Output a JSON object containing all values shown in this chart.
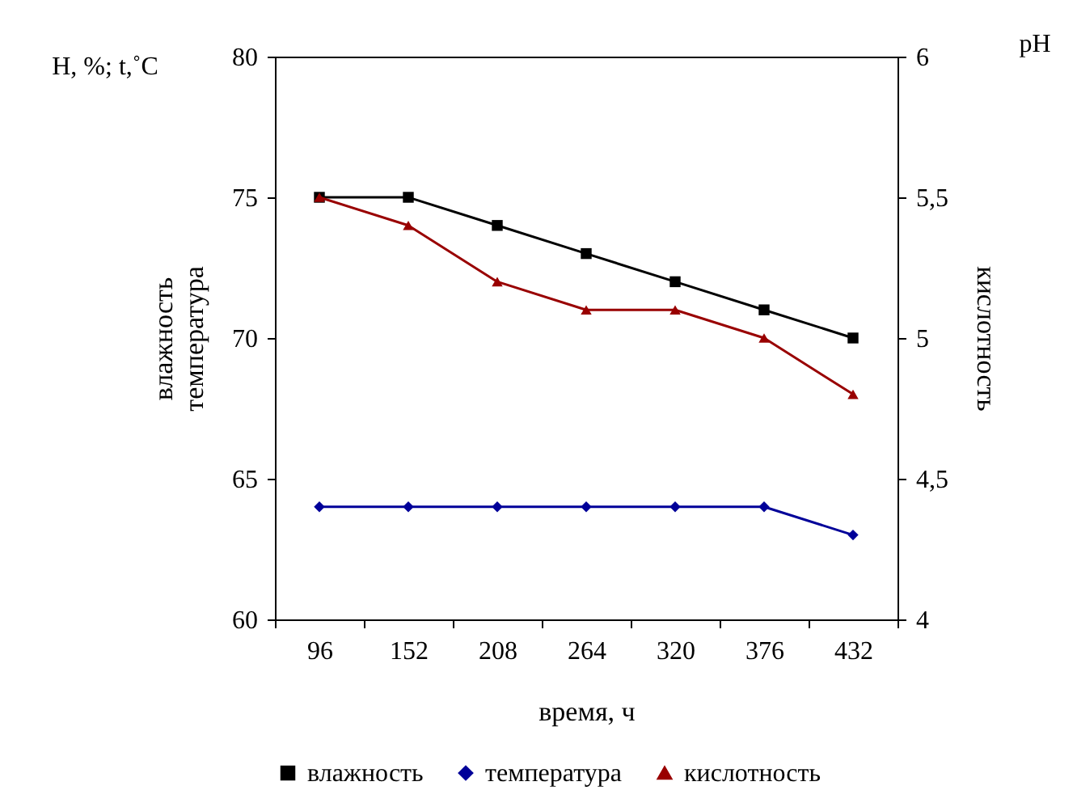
{
  "chart_data": {
    "type": "line",
    "xlabel": "время, ч",
    "ylabel": "влажность\nтемпература",
    "y2label": "кислотность",
    "annotations": [
      "H, %; t,˚C",
      "pH"
    ],
    "categories": [
      "96",
      "152",
      "208",
      "264",
      "320",
      "376",
      "432"
    ],
    "series": [
      {
        "name": "влажность",
        "color": "#000000",
        "marker": "square",
        "values": [
          75,
          75,
          74,
          73,
          72,
          71,
          70
        ]
      },
      {
        "name": "температура",
        "color": "#000099",
        "marker": "diamond",
        "values": [
          64,
          64,
          64,
          64,
          64,
          64,
          63
        ]
      },
      {
        "name": "кислотность",
        "color": "#990000",
        "marker": "triangle",
        "axis": "y2",
        "values": [
          5.5,
          5.4,
          5.2,
          5.1,
          5.1,
          5.0,
          4.8
        ]
      }
    ],
    "ylim": [
      60,
      80
    ],
    "yticks": [
      60,
      65,
      70,
      75,
      80
    ],
    "y2lim": [
      4,
      6
    ],
    "y2ticks": [
      4,
      {
        "value": 4.5,
        "label": "4,5"
      },
      5,
      {
        "value": 5.5,
        "label": "5,5"
      },
      6
    ],
    "legend": "bottom",
    "grid": false
  }
}
